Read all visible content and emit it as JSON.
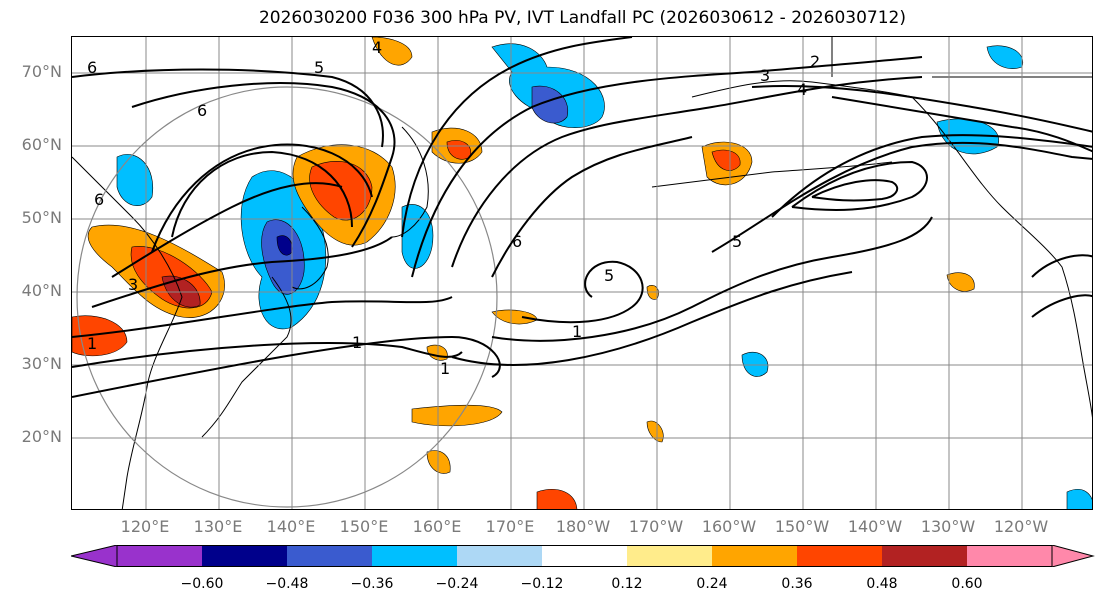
{
  "title": "2026030200 F036 300 hPa PV, IVT Landfall PC (2026030612 - 2026030712)",
  "lat_labels": [
    "70°N",
    "60°N",
    "50°N",
    "40°N",
    "30°N",
    "20°N"
  ],
  "lon_labels": [
    "120°E",
    "130°E",
    "140°E",
    "150°E",
    "160°E",
    "170°E",
    "180°W",
    "170°W",
    "160°W",
    "150°W",
    "140°W",
    "130°W",
    "120°W"
  ],
  "colorbar": {
    "colors": [
      "#9932cc",
      "#00008b",
      "#3a5bcf",
      "#00bfff",
      "#add8f5",
      "#ffffff",
      "#ffec8b",
      "#ffa500",
      "#ff4500",
      "#b22222",
      "#ff88aa"
    ],
    "ticks": [
      "−0.60",
      "−0.48",
      "−0.36",
      "−0.24",
      "−0.12",
      "0.12",
      "0.24",
      "0.36",
      "0.48",
      "0.60"
    ]
  },
  "contour_labels": [
    "1",
    "1",
    "1",
    "1",
    "2",
    "3",
    "3",
    "4",
    "4",
    "5",
    "5",
    "5",
    "6",
    "6",
    "6",
    "6"
  ]
}
